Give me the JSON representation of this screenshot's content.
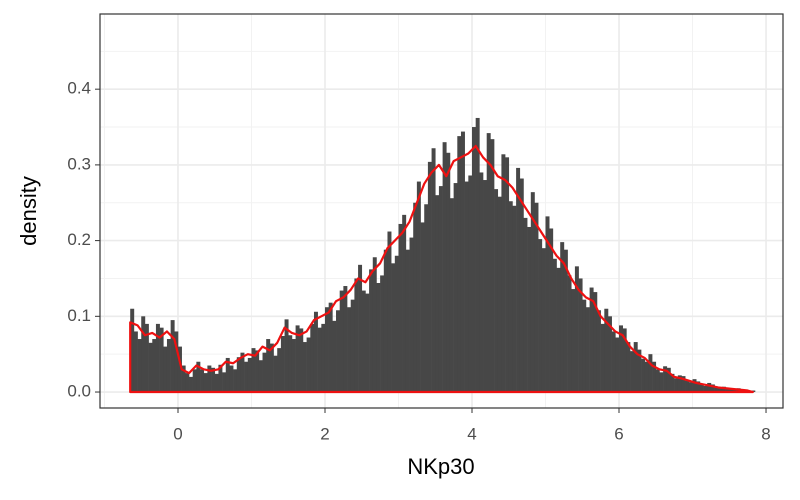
{
  "chart_data": {
    "type": "histogram",
    "x_label": "NKp30",
    "y_label": "density",
    "xlim": [
      -1.061,
      8.231
    ],
    "ylim": [
      -0.0211,
      0.4993
    ],
    "xticks": [
      0,
      2,
      4,
      6,
      8
    ],
    "yticks": [
      {
        "value": 0,
        "label": "0.0"
      },
      0.1,
      0.2,
      0.3,
      0.4
    ],
    "minor_xticks": [
      -1,
      1,
      3,
      5,
      7
    ],
    "minor_yticks": [
      0.05,
      0.15,
      0.25,
      0.35,
      0.45
    ],
    "grid": true,
    "color": "#474747",
    "bins": [
      -0.65,
      -0.6,
      -0.55,
      -0.5,
      -0.45,
      -0.4,
      -0.35,
      -0.3,
      -0.25,
      -0.2,
      -0.15,
      -0.1,
      -0.05,
      0,
      0.05,
      0.1,
      0.15,
      0.2,
      0.25,
      0.3,
      0.35,
      0.4,
      0.45,
      0.5,
      0.55,
      0.6,
      0.65,
      0.7,
      0.75,
      0.8,
      0.85,
      0.9,
      0.95,
      1,
      1.05,
      1.1,
      1.15,
      1.2,
      1.25,
      1.3,
      1.35,
      1.4,
      1.45,
      1.5,
      1.55,
      1.6,
      1.65,
      1.7,
      1.75,
      1.8,
      1.85,
      1.9,
      1.95,
      2,
      2.05,
      2.1,
      2.15,
      2.2,
      2.25,
      2.3,
      2.35,
      2.4,
      2.45,
      2.5,
      2.55,
      2.6,
      2.65,
      2.7,
      2.75,
      2.8,
      2.85,
      2.9,
      2.95,
      3,
      3.05,
      3.1,
      3.15,
      3.2,
      3.25,
      3.3,
      3.35,
      3.4,
      3.45,
      3.5,
      3.55,
      3.6,
      3.65,
      3.7,
      3.75,
      3.8,
      3.85,
      3.9,
      3.95,
      4,
      4.05,
      4.1,
      4.15,
      4.2,
      4.25,
      4.3,
      4.35,
      4.4,
      4.45,
      4.5,
      4.55,
      4.6,
      4.65,
      4.7,
      4.75,
      4.8,
      4.85,
      4.9,
      4.95,
      5,
      5.05,
      5.1,
      5.15,
      5.2,
      5.25,
      5.3,
      5.35,
      5.4,
      5.45,
      5.5,
      5.55,
      5.6,
      5.65,
      5.7,
      5.75,
      5.8,
      5.85,
      5.9,
      5.95,
      6,
      6.05,
      6.1,
      6.15,
      6.2,
      6.25,
      6.3,
      6.35,
      6.4,
      6.45,
      6.5,
      6.55,
      6.6,
      6.65,
      6.7,
      6.75,
      6.8,
      6.85,
      6.9,
      6.95,
      7,
      7.05,
      7.1,
      7.15,
      7.2,
      7.25,
      7.3,
      7.35,
      7.4,
      7.45,
      7.5,
      7.55,
      7.6,
      7.65,
      7.7,
      7.75,
      7.8,
      7.85
    ],
    "values": [
      0.11,
      0.08,
      0.07,
      0.1,
      0.09,
      0.065,
      0.07,
      0.09,
      0.085,
      0.06,
      0.07,
      0.095,
      0.08,
      0.06,
      0.035,
      0.025,
      0.02,
      0.03,
      0.04,
      0.03,
      0.025,
      0.035,
      0.032,
      0.024,
      0.036,
      0.026,
      0.045,
      0.035,
      0.03,
      0.046,
      0.052,
      0.04,
      0.045,
      0.058,
      0.055,
      0.042,
      0.052,
      0.07,
      0.064,
      0.048,
      0.058,
      0.074,
      0.096,
      0.075,
      0.07,
      0.088,
      0.084,
      0.066,
      0.072,
      0.09,
      0.106,
      0.085,
      0.09,
      0.112,
      0.118,
      0.094,
      0.108,
      0.134,
      0.14,
      0.112,
      0.122,
      0.15,
      0.168,
      0.134,
      0.13,
      0.162,
      0.178,
      0.144,
      0.154,
      0.188,
      0.212,
      0.17,
      0.18,
      0.222,
      0.234,
      0.188,
      0.204,
      0.25,
      0.278,
      0.224,
      0.248,
      0.304,
      0.322,
      0.26,
      0.272,
      0.33,
      0.316,
      0.256,
      0.276,
      0.338,
      0.344,
      0.278,
      0.286,
      0.35,
      0.362,
      0.29,
      0.28,
      0.342,
      0.334,
      0.268,
      0.258,
      0.314,
      0.31,
      0.252,
      0.246,
      0.296,
      0.282,
      0.23,
      0.218,
      0.264,
      0.25,
      0.202,
      0.19,
      0.232,
      0.216,
      0.176,
      0.164,
      0.198,
      0.188,
      0.154,
      0.136,
      0.166,
      0.15,
      0.122,
      0.112,
      0.138,
      0.132,
      0.108,
      0.09,
      0.11,
      0.1,
      0.08,
      0.072,
      0.088,
      0.084,
      0.066,
      0.054,
      0.066,
      0.056,
      0.044,
      0.04,
      0.05,
      0.04,
      0.03,
      0.026,
      0.034,
      0.032,
      0.024,
      0.018,
      0.022,
      0.021,
      0.015,
      0.013,
      0.017,
      0.014,
      0.01,
      0.008,
      0.012,
      0.01,
      0.006,
      0.005,
      0.007,
      0.006,
      0.004,
      0.003,
      0.005,
      0.004,
      0.002,
      0.002,
      0.002
    ],
    "overlay": {
      "type": "line",
      "color": "#ee1111",
      "x": [
        -0.65,
        -0.65,
        -0.55,
        -0.45,
        -0.35,
        -0.25,
        -0.15,
        -0.05,
        0.05,
        0.15,
        0.25,
        0.35,
        0.45,
        0.55,
        0.65,
        0.75,
        0.85,
        0.95,
        1.05,
        1.15,
        1.25,
        1.35,
        1.45,
        1.55,
        1.65,
        1.75,
        1.85,
        1.95,
        2.05,
        2.15,
        2.25,
        2.35,
        2.45,
        2.55,
        2.65,
        2.75,
        2.85,
        2.95,
        3.05,
        3.15,
        3.25,
        3.35,
        3.45,
        3.55,
        3.65,
        3.75,
        3.85,
        3.95,
        4.05,
        4.15,
        4.25,
        4.35,
        4.45,
        4.55,
        4.65,
        4.75,
        4.85,
        4.95,
        5.05,
        5.15,
        5.25,
        5.35,
        5.45,
        5.55,
        5.65,
        5.75,
        5.85,
        5.95,
        6.05,
        6.15,
        6.25,
        6.35,
        6.45,
        6.55,
        6.65,
        6.75,
        6.85,
        6.95,
        7.05,
        7.15,
        7.25,
        7.35,
        7.45,
        7.55,
        7.65,
        7.75,
        7.82
      ],
      "values": [
        0,
        0.092,
        0.088,
        0.075,
        0.078,
        0.072,
        0.08,
        0.07,
        0.03,
        0.025,
        0.035,
        0.03,
        0.028,
        0.03,
        0.04,
        0.038,
        0.045,
        0.05,
        0.048,
        0.06,
        0.055,
        0.065,
        0.085,
        0.078,
        0.075,
        0.08,
        0.095,
        0.1,
        0.105,
        0.12,
        0.125,
        0.135,
        0.15,
        0.145,
        0.16,
        0.17,
        0.19,
        0.2,
        0.21,
        0.225,
        0.25,
        0.275,
        0.29,
        0.3,
        0.285,
        0.305,
        0.31,
        0.315,
        0.325,
        0.31,
        0.3,
        0.285,
        0.28,
        0.27,
        0.255,
        0.24,
        0.225,
        0.21,
        0.195,
        0.18,
        0.17,
        0.15,
        0.135,
        0.125,
        0.12,
        0.1,
        0.09,
        0.08,
        0.075,
        0.06,
        0.05,
        0.045,
        0.035,
        0.03,
        0.028,
        0.02,
        0.018,
        0.015,
        0.012,
        0.01,
        0.008,
        0.006,
        0.005,
        0.004,
        0.003,
        0.002,
        0
      ]
    }
  }
}
